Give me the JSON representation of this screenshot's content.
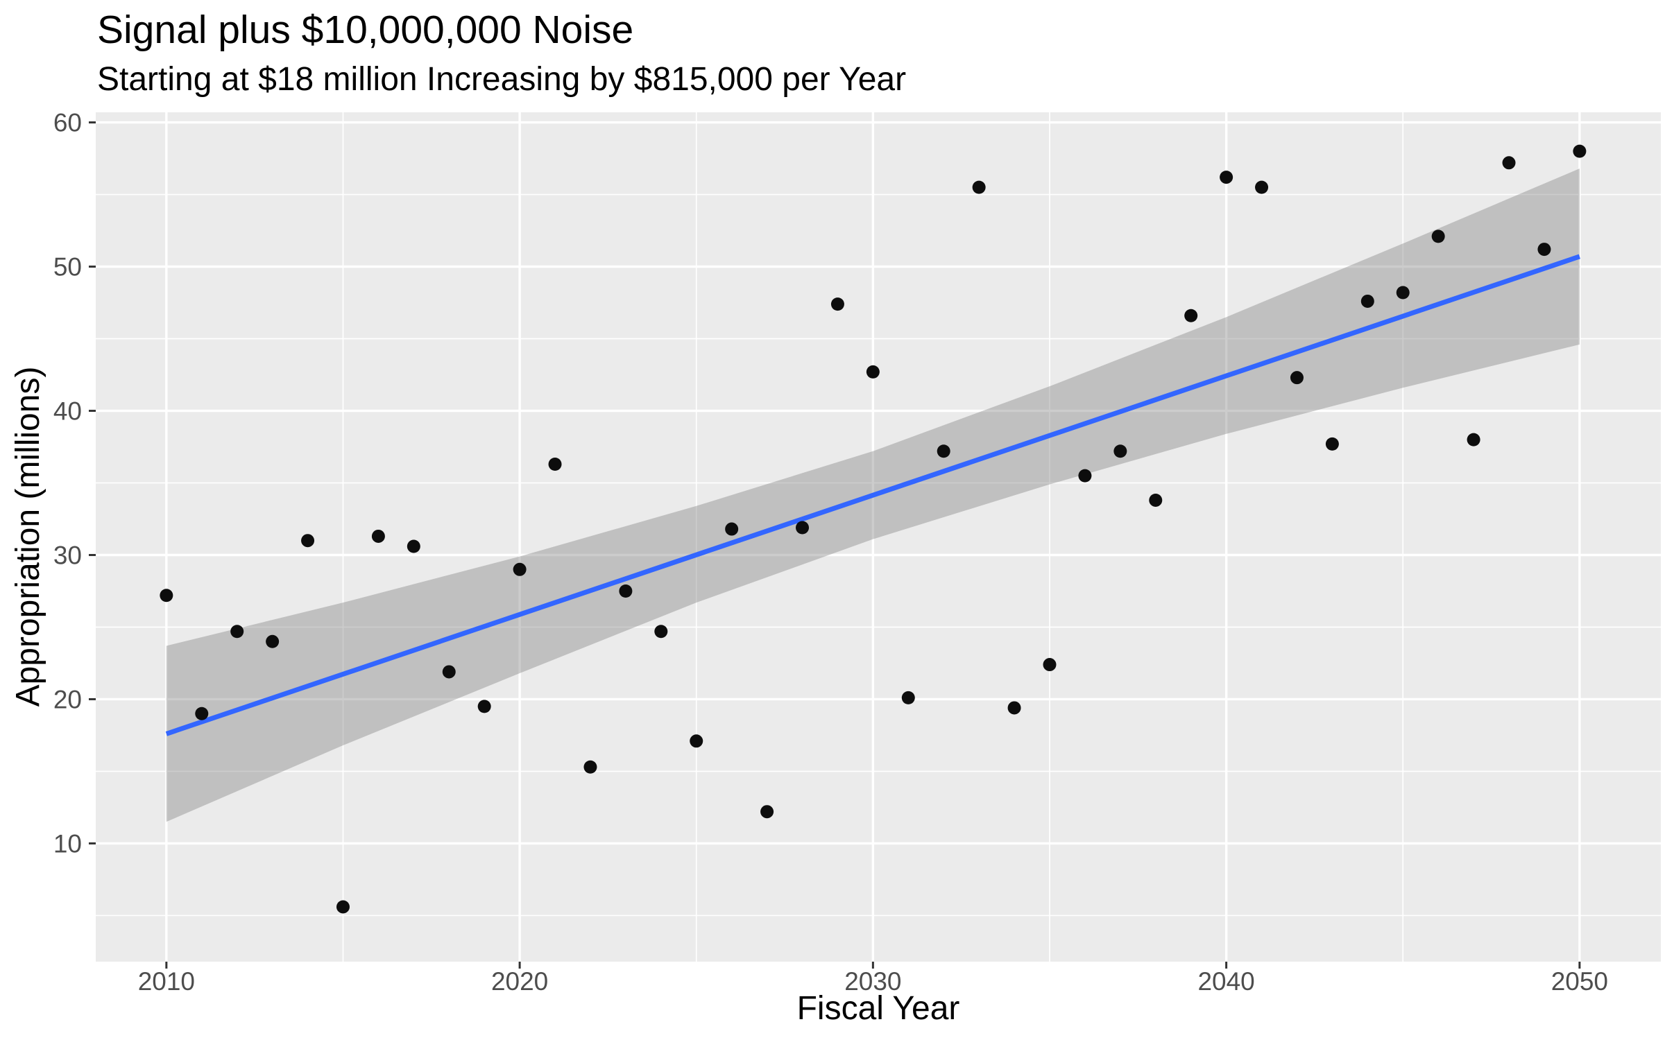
{
  "title": "Signal plus $10,000,000 Noise",
  "subtitle": "Starting at $18 million Increasing by $815,000 per Year",
  "chart_data": {
    "type": "scatter",
    "title": "Signal plus $10,000,000 Noise",
    "subtitle": "Starting at $18 million Increasing by $815,000 per Year",
    "xlabel": "Fiscal Year",
    "ylabel": "Appropriation (millions)",
    "xlim": [
      2008,
      2052.3
    ],
    "ylim": [
      1.8,
      60.7
    ],
    "grid": true,
    "legend": false,
    "x_major_ticks": [
      2010,
      2020,
      2030,
      2040,
      2050
    ],
    "x_tick_labels": [
      "2010",
      "2020",
      "2030",
      "2040",
      "2050"
    ],
    "x_minor_ticks": [
      2015,
      2025,
      2035,
      2045
    ],
    "y_major_ticks": [
      10,
      20,
      30,
      40,
      50,
      60
    ],
    "y_tick_labels": [
      "10",
      "20",
      "30",
      "40",
      "50",
      "60"
    ],
    "y_minor_ticks": [
      5,
      15,
      25,
      35,
      45,
      55
    ],
    "series": [
      {
        "name": "appropriation-points",
        "type": "scatter",
        "x": [
          2010,
          2011,
          2012,
          2013,
          2014,
          2015,
          2016,
          2017,
          2018,
          2019,
          2020,
          2021,
          2022,
          2023,
          2024,
          2025,
          2026,
          2027,
          2028,
          2029,
          2030,
          2031,
          2032,
          2033,
          2034,
          2035,
          2036,
          2037,
          2038,
          2039,
          2040,
          2041,
          2042,
          2043,
          2044,
          2045,
          2046,
          2047,
          2048,
          2049,
          2050
        ],
        "y": [
          27.2,
          19.0,
          24.7,
          24.0,
          31.0,
          5.6,
          31.3,
          30.6,
          21.9,
          19.5,
          29.0,
          36.3,
          15.3,
          27.5,
          24.7,
          17.1,
          31.8,
          12.2,
          31.9,
          47.4,
          42.7,
          20.1,
          37.2,
          55.5,
          19.4,
          22.4,
          35.5,
          37.2,
          33.8,
          46.6,
          56.2,
          55.5,
          42.3,
          37.7,
          47.6,
          48.2,
          52.1,
          38.0,
          57.2,
          51.2,
          58.0
        ]
      },
      {
        "name": "linear-fit-line",
        "type": "line",
        "x": [
          2010,
          2050
        ],
        "y": [
          17.6,
          50.7
        ]
      },
      {
        "name": "confidence-band",
        "type": "area",
        "x": [
          2010,
          2015,
          2020,
          2025,
          2030,
          2035,
          2040,
          2045,
          2050
        ],
        "lower": [
          11.5,
          16.8,
          21.8,
          26.7,
          31.1,
          34.9,
          38.4,
          41.6,
          44.6
        ],
        "upper": [
          23.7,
          26.7,
          29.9,
          33.4,
          37.2,
          41.7,
          46.5,
          51.6,
          56.8
        ]
      }
    ],
    "colors": {
      "panel_background": "#EBEBEB",
      "gridline": "#FFFFFF",
      "point": "#0D0D0D",
      "trend_line": "#3366FF",
      "confidence_band": "#7F7F7F",
      "confidence_band_opacity": 0.4,
      "tick_mark": "#333333",
      "tick_label": "#4D4D4D",
      "text": "#000000"
    }
  }
}
